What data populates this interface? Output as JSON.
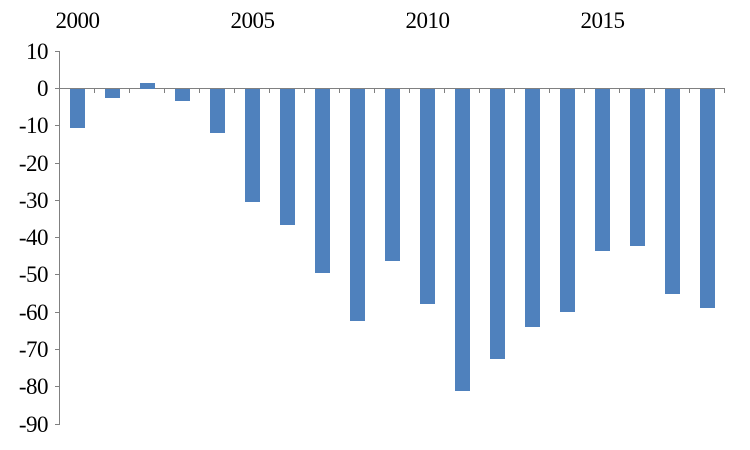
{
  "chart_data": {
    "type": "bar",
    "title": "",
    "xlabel": "",
    "ylabel": "",
    "categories": [
      2000,
      2001,
      2002,
      2003,
      2004,
      2005,
      2006,
      2007,
      2008,
      2009,
      2010,
      2011,
      2012,
      2013,
      2014,
      2015,
      2016,
      2017,
      2018
    ],
    "values": [
      -10.5,
      -2.3,
      1.7,
      -3.1,
      -11.9,
      -30.2,
      -36.5,
      -49.3,
      -62.2,
      -46.1,
      -57.7,
      -81.0,
      -72.4,
      -63.8,
      -59.7,
      -43.4,
      -42.1,
      -54.9,
      -58.8
    ],
    "ylim": [
      -90,
      10
    ],
    "y_ticks": [
      10,
      0,
      -10,
      -20,
      -30,
      -40,
      -50,
      -60,
      -70,
      -80,
      -90
    ],
    "x_tick_labels": [
      "2000",
      "2005",
      "2010",
      "2015"
    ],
    "x_tick_years": [
      2000,
      2005,
      2010,
      2015
    ],
    "x_label_position": "top",
    "grid": false,
    "legend": null,
    "bar_color": "#4F81BD",
    "axis_color": "#808080",
    "label_color": "#000000"
  }
}
